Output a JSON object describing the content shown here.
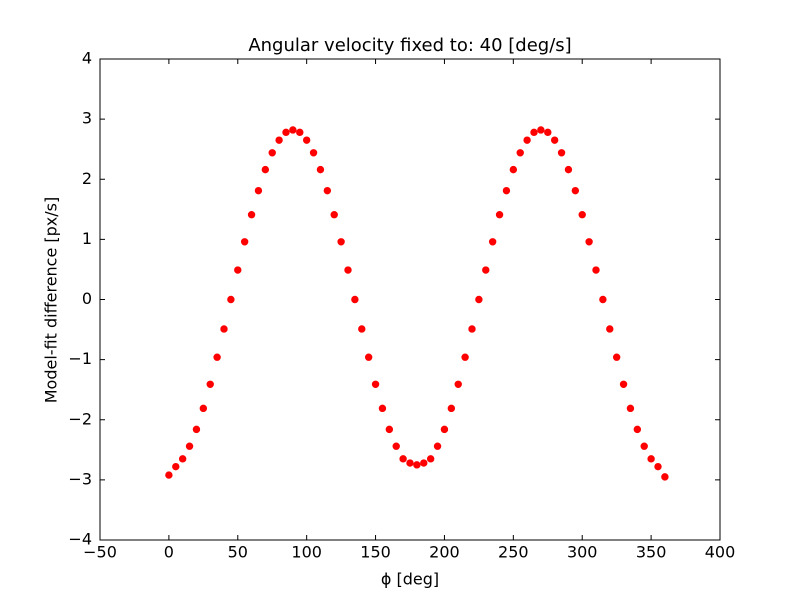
{
  "chart_data": {
    "type": "scatter",
    "title": "Angular velocity fixed to: 40 [deg/s]",
    "x_label": "ϕ [deg]",
    "y_label": "Model-fit difference [px/s]",
    "xlim": [
      -50,
      400
    ],
    "ylim": [
      -4,
      4
    ],
    "xticks": [
      {
        "value": -50,
        "label": "−50"
      },
      0,
      50,
      100,
      150,
      200,
      250,
      300,
      350,
      400
    ],
    "yticks": [
      {
        "value": -4,
        "label": "−4"
      },
      {
        "value": -3,
        "label": "−3"
      },
      {
        "value": -2,
        "label": "−2"
      },
      {
        "value": -1,
        "label": "−1"
      },
      0,
      1,
      2,
      3,
      4
    ],
    "x": [
      0,
      5,
      10,
      15,
      20,
      25,
      30,
      35,
      40,
      45,
      50,
      55,
      60,
      65,
      70,
      75,
      80,
      85,
      90,
      95,
      100,
      105,
      110,
      115,
      120,
      125,
      130,
      135,
      140,
      145,
      150,
      155,
      160,
      165,
      170,
      175,
      180,
      185,
      190,
      195,
      200,
      205,
      210,
      215,
      220,
      225,
      230,
      235,
      240,
      245,
      250,
      255,
      260,
      265,
      270,
      275,
      280,
      285,
      290,
      295,
      300,
      305,
      310,
      315,
      320,
      325,
      330,
      335,
      340,
      345,
      350,
      355,
      360
    ],
    "series": [
      {
        "color": "#ff0000",
        "values": [
          -2.92,
          -2.78,
          -2.65,
          -2.44,
          -2.16,
          -1.81,
          -1.41,
          -0.96,
          -0.49,
          0,
          0.49,
          0.96,
          1.41,
          1.81,
          2.16,
          2.44,
          2.65,
          2.78,
          2.82,
          2.78,
          2.65,
          2.44,
          2.16,
          1.81,
          1.41,
          0.96,
          0.49,
          0,
          -0.49,
          -0.96,
          -1.41,
          -1.81,
          -2.16,
          -2.44,
          -2.65,
          -2.72,
          -2.75,
          -2.72,
          -2.65,
          -2.44,
          -2.16,
          -1.81,
          -1.41,
          -0.96,
          -0.49,
          0,
          0.49,
          0.96,
          1.41,
          1.81,
          2.16,
          2.44,
          2.65,
          2.78,
          2.82,
          2.78,
          2.65,
          2.44,
          2.16,
          1.81,
          1.41,
          0.96,
          0.49,
          0,
          -0.49,
          -0.96,
          -1.41,
          -1.81,
          -2.16,
          -2.44,
          -2.65,
          -2.78,
          -2.95
        ]
      }
    ]
  }
}
